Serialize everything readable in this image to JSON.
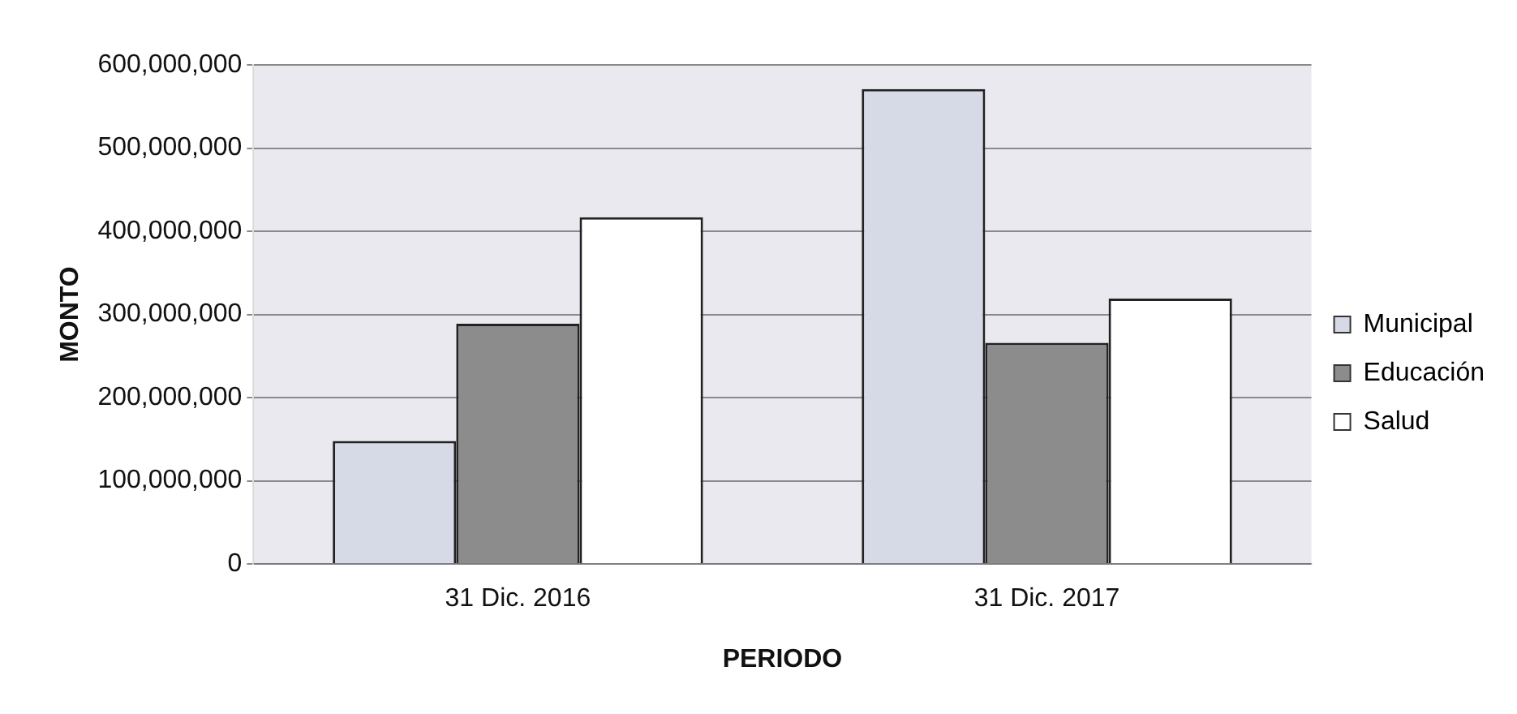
{
  "chart_data": {
    "type": "bar",
    "xlabel": "PERIODO",
    "ylabel": "MONTO",
    "categories": [
      "31 Dic. 2016",
      "31 Dic. 2017"
    ],
    "series": [
      {
        "name": "Municipal",
        "color": "#d6d9e6",
        "values": [
          148000000,
          571000000
        ]
      },
      {
        "name": "Educación",
        "color": "#8c8c8c",
        "values": [
          289000000,
          266000000
        ]
      },
      {
        "name": "Salud",
        "color": "#ffffff",
        "values": [
          417000000,
          319000000
        ]
      }
    ],
    "ylim": [
      0,
      600000000
    ],
    "yticks": [
      0,
      {
        "value": 100000000,
        "label": "100,000,000"
      },
      {
        "value": 200000000,
        "label": "200,000,000"
      },
      {
        "value": 300000000,
        "label": "300,000,000"
      },
      {
        "value": 400000000,
        "label": "400,000,000"
      },
      {
        "value": 500000000,
        "label": "500,000,000"
      },
      {
        "value": 600000000,
        "label": "600,000,000"
      }
    ],
    "grid": "y",
    "legend": "right"
  }
}
